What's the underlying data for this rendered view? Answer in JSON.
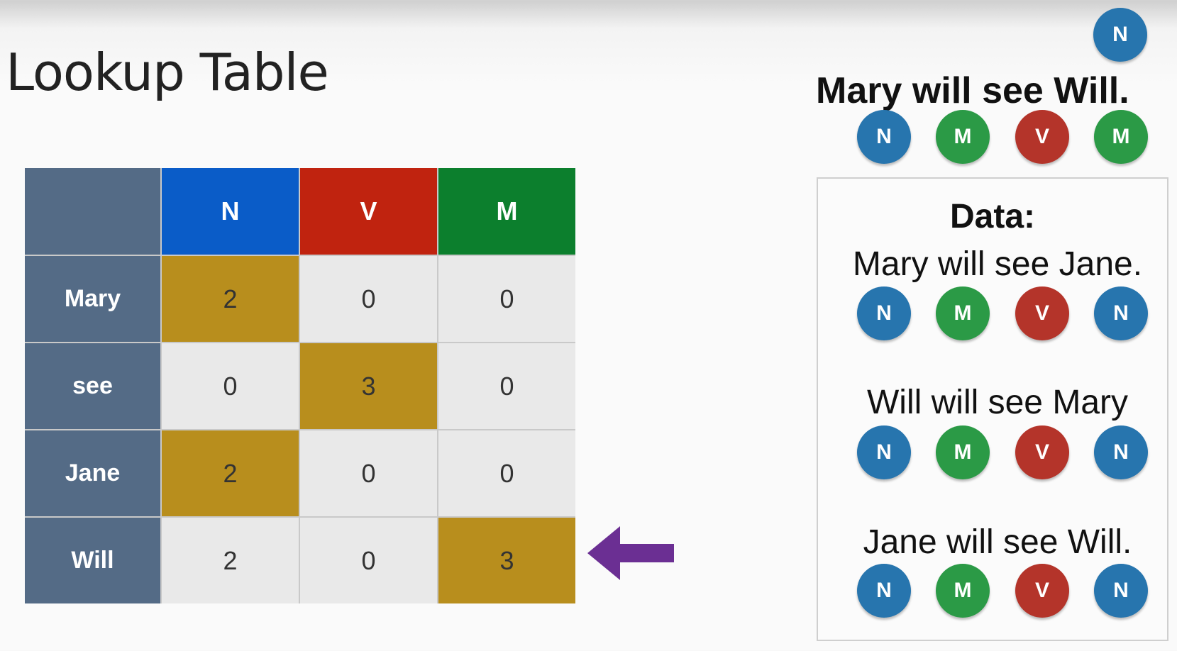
{
  "title": "Lookup Table",
  "table": {
    "columns": [
      {
        "label": "N",
        "color": "#0a5cc8"
      },
      {
        "label": "V",
        "color": "#c0230f"
      },
      {
        "label": "M",
        "color": "#0c7f2d"
      }
    ],
    "rows": [
      {
        "word": "Mary",
        "values": [
          "2",
          "0",
          "0"
        ],
        "highlight": 0
      },
      {
        "word": "see",
        "values": [
          "0",
          "3",
          "0"
        ],
        "highlight": 1
      },
      {
        "word": "Jane",
        "values": [
          "2",
          "0",
          "0"
        ],
        "highlight": 0
      },
      {
        "word": "Will",
        "values": [
          "2",
          "0",
          "3"
        ],
        "highlight": 2
      }
    ],
    "highlight_color": "#b88e1d",
    "arrow_color": "#6b2f93"
  },
  "query": {
    "sentence": "Mary will see Will.",
    "top_tag": "N",
    "tags": [
      "N",
      "M",
      "V",
      "M"
    ]
  },
  "data": {
    "title": "Data:",
    "sentences": [
      {
        "text": "Mary will see Jane.",
        "tags": [
          "N",
          "M",
          "V",
          "N"
        ]
      },
      {
        "text": "Will will see Mary",
        "tags": [
          "N",
          "M",
          "V",
          "N"
        ]
      },
      {
        "text": "Jane will see Will.",
        "tags": [
          "N",
          "M",
          "V",
          "N"
        ]
      }
    ]
  },
  "tag_colors": {
    "N": "#2775ae",
    "M": "#2b9a46",
    "V": "#b4342a"
  }
}
